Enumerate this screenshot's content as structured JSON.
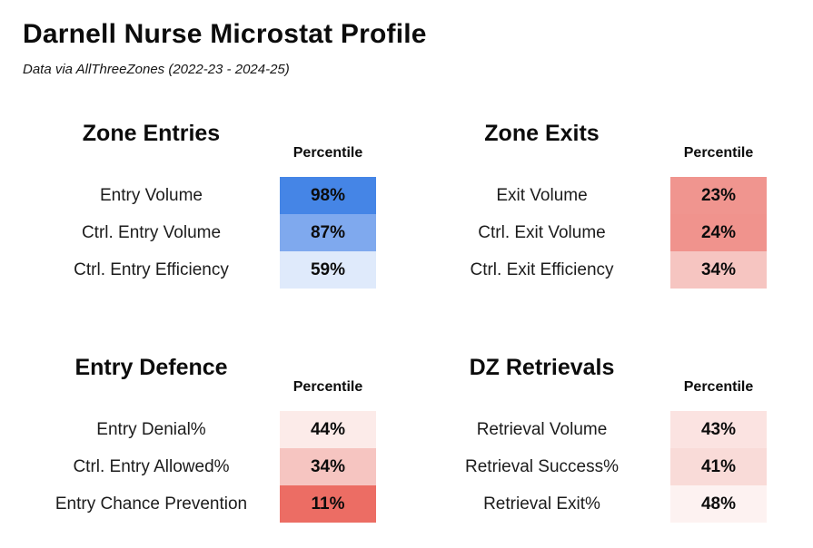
{
  "page": {
    "title": "Darnell Nurse Microstat Profile",
    "subtitle": "Data via AllThreeZones (2022-23 - 2024-25)"
  },
  "sections": [
    {
      "title": "Zone Entries",
      "column_header": "Percentile",
      "rows": [
        {
          "label": "Entry Volume",
          "value": "98%",
          "color": "#4585e6"
        },
        {
          "label": "Ctrl. Entry Volume",
          "value": "87%",
          "color": "#7fa9ee"
        },
        {
          "label": "Ctrl. Entry Efficiency",
          "value": "59%",
          "color": "#dfeafb"
        }
      ]
    },
    {
      "title": "Zone Exits",
      "column_header": "Percentile",
      "rows": [
        {
          "label": "Exit Volume",
          "value": "23%",
          "color": "#f0958f"
        },
        {
          "label": "Ctrl. Exit Volume",
          "value": "24%",
          "color": "#f0938d"
        },
        {
          "label": "Ctrl. Exit Efficiency",
          "value": "34%",
          "color": "#f6c5c1"
        }
      ]
    },
    {
      "title": "Entry Defence",
      "column_header": "Percentile",
      "rows": [
        {
          "label": "Entry Denial%",
          "value": "44%",
          "color": "#fcebe9"
        },
        {
          "label": "Ctrl. Entry Allowed%",
          "value": "34%",
          "color": "#f6c5c1"
        },
        {
          "label": "Entry Chance Prevention",
          "value": "11%",
          "color": "#ec6d64"
        }
      ]
    },
    {
      "title": "DZ Retrievals",
      "column_header": "Percentile",
      "rows": [
        {
          "label": "Retrieval Volume",
          "value": "43%",
          "color": "#fbe3e1"
        },
        {
          "label": "Retrieval Success%",
          "value": "41%",
          "color": "#f9dbd8"
        },
        {
          "label": "Retrieval Exit%",
          "value": "48%",
          "color": "#fdf2f1"
        }
      ]
    }
  ],
  "chart_data": {
    "type": "heatmap",
    "title": "Darnell Nurse Microstat Profile",
    "subtitle": "Data via AllThreeZones (2022-23 - 2024-25)",
    "value_label": "Percentile",
    "value_range": [
      0,
      100
    ],
    "color_scale": {
      "low_color": "#e8463b",
      "mid_color": "#ffffff",
      "high_color": "#3b7fe3",
      "domain": [
        0,
        50,
        100
      ]
    },
    "groups": [
      {
        "name": "Zone Entries",
        "metrics": [
          "Entry Volume",
          "Ctrl. Entry Volume",
          "Ctrl. Entry Efficiency"
        ],
        "percentiles": [
          98,
          87,
          59
        ]
      },
      {
        "name": "Zone Exits",
        "metrics": [
          "Exit Volume",
          "Ctrl. Exit Volume",
          "Ctrl. Exit Efficiency"
        ],
        "percentiles": [
          23,
          24,
          34
        ]
      },
      {
        "name": "Entry Defence",
        "metrics": [
          "Entry Denial%",
          "Ctrl. Entry Allowed%",
          "Entry Chance Prevention"
        ],
        "percentiles": [
          44,
          34,
          11
        ]
      },
      {
        "name": "DZ Retrievals",
        "metrics": [
          "Retrieval Volume",
          "Retrieval Success%",
          "Retrieval Exit%"
        ],
        "percentiles": [
          43,
          41,
          48
        ]
      }
    ]
  }
}
